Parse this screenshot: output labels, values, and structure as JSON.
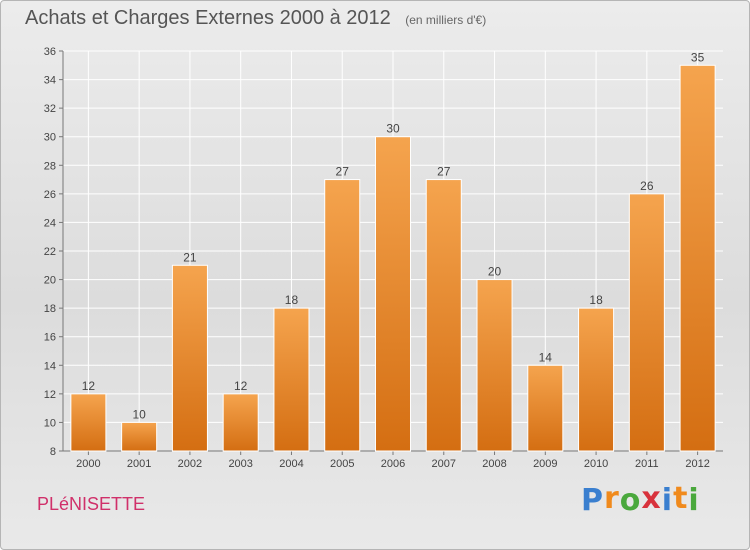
{
  "header": {
    "title": "Achats et Charges Externes 2000 à 2012",
    "subtitle": "(en milliers d'€)"
  },
  "commune": "PLéNISETTE",
  "logo": {
    "letters": [
      "P",
      "r",
      "o",
      "x",
      "i",
      "t",
      "i"
    ],
    "colors": [
      "#3a7fcf",
      "#f08a1c",
      "#4aa83c",
      "#d8323c",
      "#3a7fcf",
      "#f08a1c",
      "#4aa83c"
    ]
  },
  "colors": {
    "bar_top": "#f5a44e",
    "bar_bottom": "#d46e12",
    "grid": "#ffffff"
  },
  "chart_data": {
    "type": "bar",
    "categories": [
      "2000",
      "2001",
      "2002",
      "2003",
      "2004",
      "2005",
      "2006",
      "2007",
      "2008",
      "2009",
      "2010",
      "2011",
      "2012"
    ],
    "values": [
      12,
      10,
      21,
      12,
      18,
      27,
      30,
      27,
      20,
      14,
      18,
      26,
      35
    ],
    "ylim": [
      8,
      36
    ],
    "yticks": [
      8,
      10,
      12,
      14,
      16,
      18,
      20,
      22,
      24,
      26,
      28,
      30,
      32,
      34,
      36
    ],
    "grid": true,
    "data_labels": true
  }
}
